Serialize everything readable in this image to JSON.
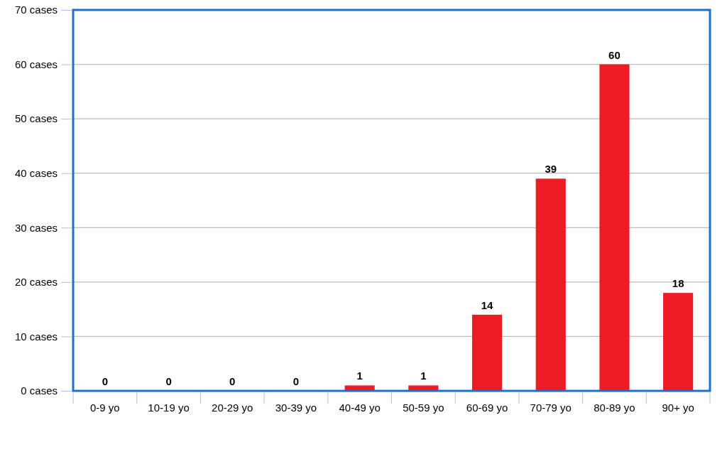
{
  "chart_data": {
    "type": "bar",
    "categories": [
      "0-9 yo",
      "10-19 yo",
      "20-29 yo",
      "30-39 yo",
      "40-49 yo",
      "50-59 yo",
      "60-69 yo",
      "70-79 yo",
      "80-89 yo",
      "90+ yo"
    ],
    "values": [
      0,
      0,
      0,
      0,
      1,
      1,
      14,
      39,
      60,
      18
    ],
    "color": "#ed1c24",
    "ylim": [
      0,
      70
    ],
    "yticks": [
      {
        "value": 0,
        "label": "0 cases"
      },
      {
        "value": 10,
        "label": "10 cases"
      },
      {
        "value": 20,
        "label": "20 cases"
      },
      {
        "value": 30,
        "label": "30 cases"
      },
      {
        "value": 40,
        "label": "40 cases"
      },
      {
        "value": 50,
        "label": "50 cases"
      },
      {
        "value": 60,
        "label": "60 cases"
      },
      {
        "value": 70,
        "label": "70 cases"
      }
    ],
    "grid": "y",
    "data_labels": true
  }
}
